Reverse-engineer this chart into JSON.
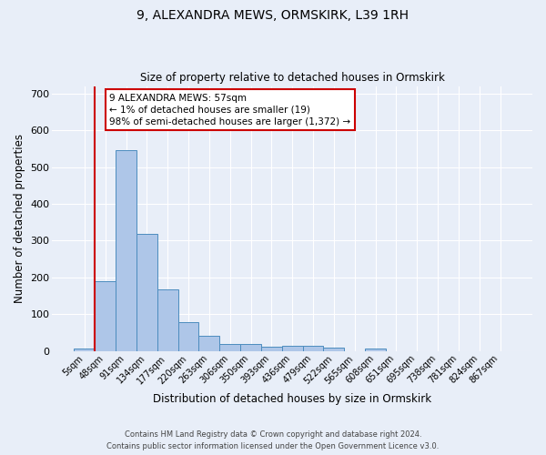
{
  "title": "9, ALEXANDRA MEWS, ORMSKIRK, L39 1RH",
  "subtitle": "Size of property relative to detached houses in Ormskirk",
  "xlabel": "Distribution of detached houses by size in Ormskirk",
  "ylabel": "Number of detached properties",
  "bar_labels": [
    "5sqm",
    "48sqm",
    "91sqm",
    "134sqm",
    "177sqm",
    "220sqm",
    "263sqm",
    "306sqm",
    "350sqm",
    "393sqm",
    "436sqm",
    "479sqm",
    "522sqm",
    "565sqm",
    "608sqm",
    "651sqm",
    "695sqm",
    "738sqm",
    "781sqm",
    "824sqm",
    "867sqm"
  ],
  "bar_values": [
    8,
    190,
    545,
    318,
    168,
    78,
    42,
    20,
    20,
    12,
    14,
    14,
    10,
    0,
    8,
    0,
    0,
    0,
    0,
    0,
    0
  ],
  "bar_color": "#aec6e8",
  "bar_edge_color": "#4c8cbe",
  "bg_color": "#e8eef8",
  "grid_color": "#ffffff",
  "vline_color": "#cc0000",
  "annotation_text": "9 ALEXANDRA MEWS: 57sqm\n← 1% of detached houses are smaller (19)\n98% of semi-detached houses are larger (1,372) →",
  "annotation_box_color": "#ffffff",
  "annotation_box_edge": "#cc0000",
  "footer": "Contains HM Land Registry data © Crown copyright and database right 2024.\nContains public sector information licensed under the Open Government Licence v3.0.",
  "ylim": [
    0,
    720
  ],
  "figsize": [
    6.0,
    5.0
  ],
  "dpi": 100
}
